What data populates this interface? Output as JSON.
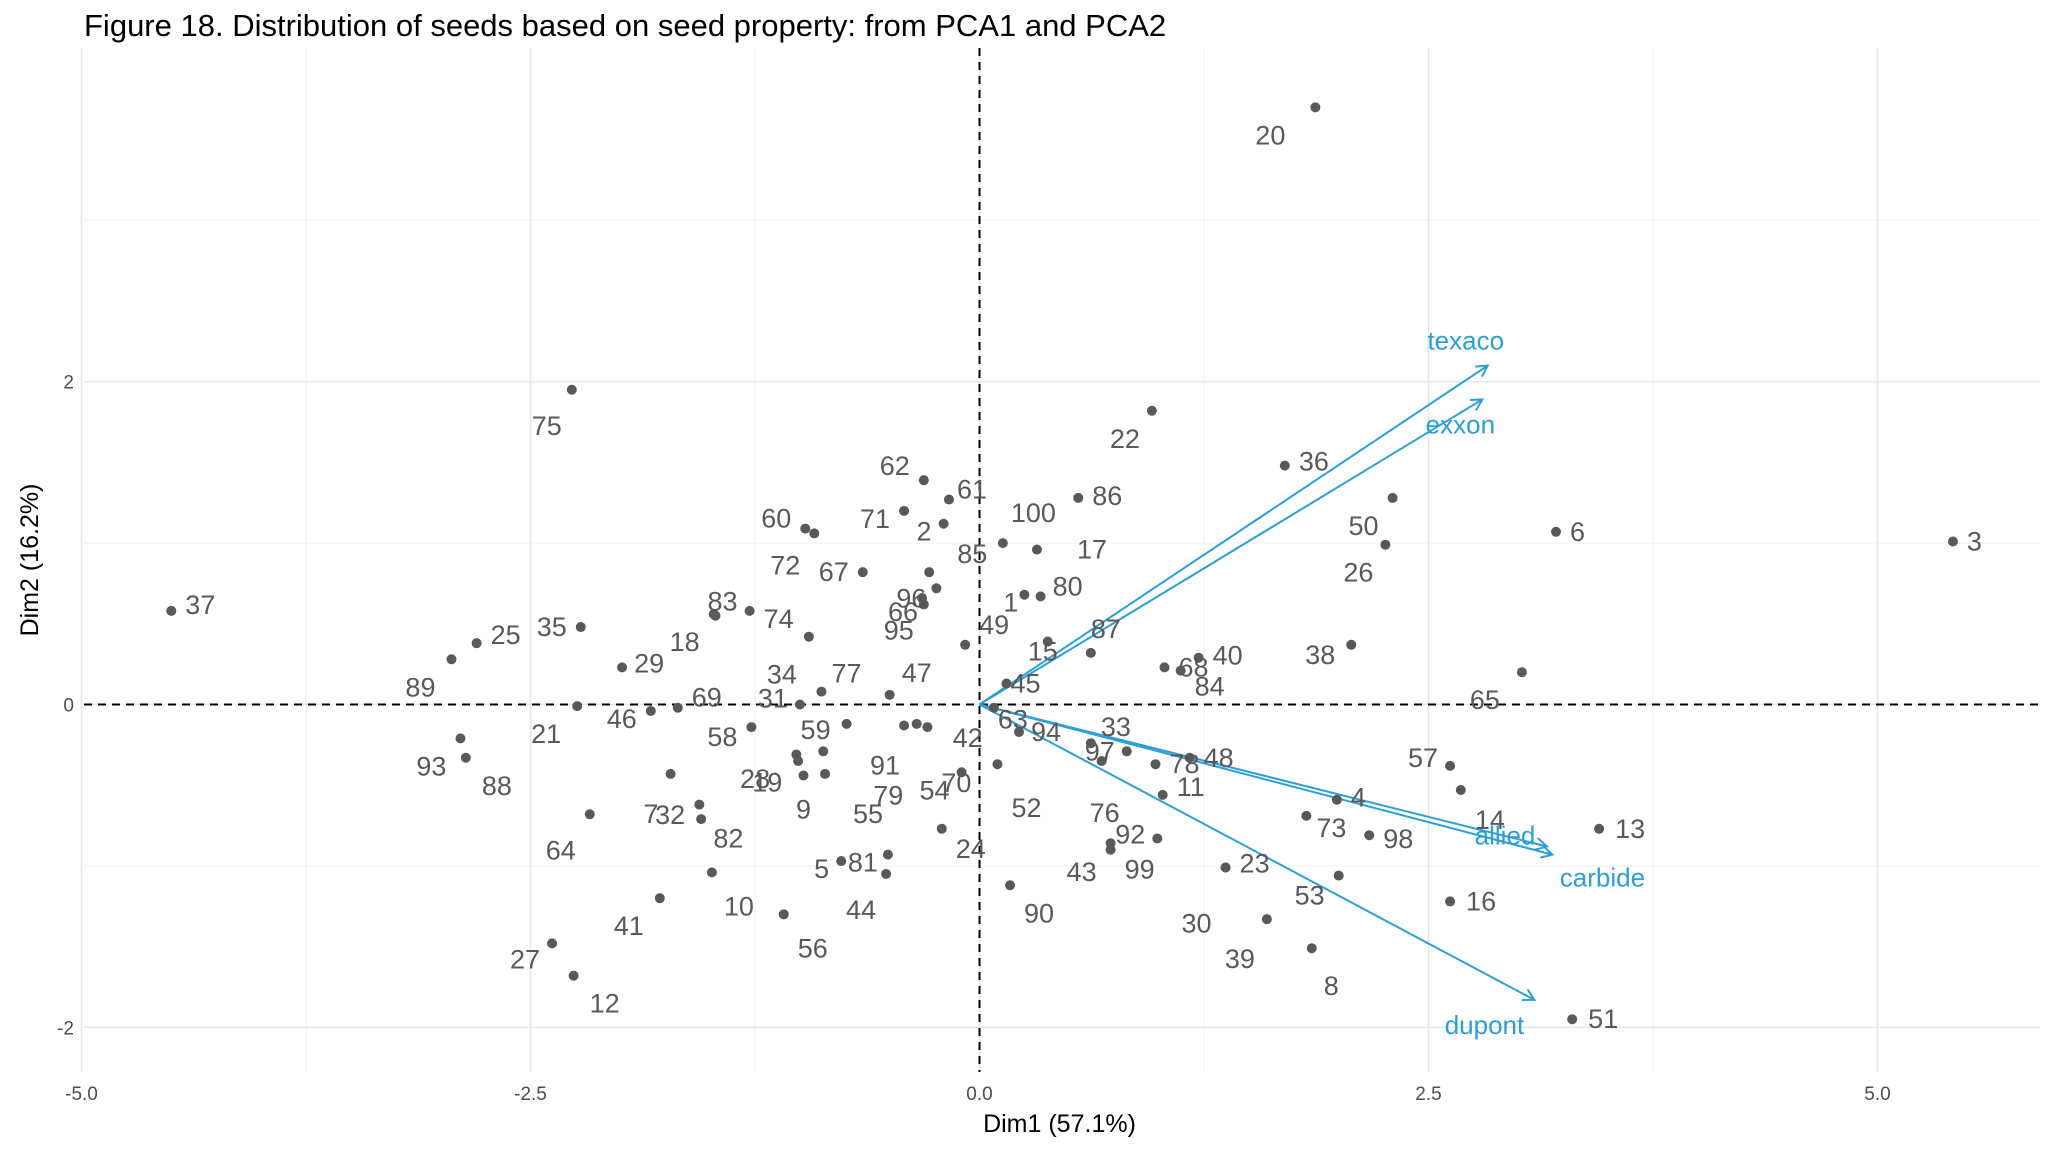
{
  "chart_data": {
    "type": "scatter",
    "title": "Figure 18. Distribution of seeds based on seed property: from PCA1 and PCA2",
    "xlabel": "Dim1 (57.1%)",
    "ylabel": "Dim2 (16.2%)",
    "xlim": [
      -5.0,
      5.85
    ],
    "ylim": [
      -2.22,
      3.9
    ],
    "x_ticks": [
      -5.0,
      -2.5,
      0.0,
      2.5,
      5.0
    ],
    "x_tick_labels": [
      "-5.0",
      "-2.5",
      "0.0",
      "2.5",
      "5.0"
    ],
    "y_ticks": [
      -2,
      0,
      2
    ],
    "y_tick_labels": [
      "-2",
      "0",
      "2"
    ],
    "grid": true,
    "reference_lines": {
      "x": 0,
      "y": 0,
      "style": "dashed"
    },
    "point_color": "#595959",
    "arrow_color": "#2a9fd8",
    "points": [
      {
        "label": "1",
        "x": 0.25,
        "y": 0.68
      },
      {
        "label": "2",
        "x": -0.2,
        "y": 1.12
      },
      {
        "label": "3",
        "x": 5.42,
        "y": 1.01
      },
      {
        "label": "4",
        "x": 1.99,
        "y": -0.59
      },
      {
        "label": "5",
        "x": -0.77,
        "y": -0.97
      },
      {
        "label": "6",
        "x": 3.21,
        "y": 1.07
      },
      {
        "label": "7",
        "x": -1.72,
        "y": -0.43
      },
      {
        "label": "8",
        "x": 1.85,
        "y": -1.51
      },
      {
        "label": "9",
        "x": -0.98,
        "y": -0.44
      },
      {
        "label": "10",
        "x": -1.49,
        "y": -1.04
      },
      {
        "label": "11",
        "x": 1.02,
        "y": -0.56
      },
      {
        "label": "12",
        "x": -2.26,
        "y": -1.68
      },
      {
        "label": "13",
        "x": 3.45,
        "y": -0.77
      },
      {
        "label": "14",
        "x": 2.68,
        "y": -0.53
      },
      {
        "label": "15",
        "x": 0.38,
        "y": 0.39
      },
      {
        "label": "16",
        "x": 2.62,
        "y": -1.22
      },
      {
        "label": "17",
        "x": 0.32,
        "y": 0.96
      },
      {
        "label": "18",
        "x": -1.48,
        "y": 0.56
      },
      {
        "label": "19",
        "x": -1.02,
        "y": -0.31
      },
      {
        "label": "20",
        "x": 1.87,
        "y": 3.7
      },
      {
        "label": "21",
        "x": -2.24,
        "y": -0.01
      },
      {
        "label": "22",
        "x": 0.96,
        "y": 1.82
      },
      {
        "label": "23",
        "x": 1.37,
        "y": -1.01
      },
      {
        "label": "24",
        "x": -0.21,
        "y": -0.77
      },
      {
        "label": "25",
        "x": -2.8,
        "y": 0.38
      },
      {
        "label": "26",
        "x": 2.26,
        "y": 0.99
      },
      {
        "label": "27",
        "x": -2.38,
        "y": -1.48
      },
      {
        "label": "28",
        "x": -1.01,
        "y": -0.35
      },
      {
        "label": "29",
        "x": -1.99,
        "y": 0.23
      },
      {
        "label": "30",
        "x": 1.37,
        "y": -1.01
      },
      {
        "label": "31",
        "x": -1.0,
        "y": 0.0
      },
      {
        "label": "32",
        "x": -1.55,
        "y": -0.71
      },
      {
        "label": "33",
        "x": 0.62,
        "y": -0.24
      },
      {
        "label": "34",
        "x": -0.95,
        "y": 0.42
      },
      {
        "label": "35",
        "x": -2.22,
        "y": 0.48
      },
      {
        "label": "36",
        "x": 1.7,
        "y": 1.48
      },
      {
        "label": "37",
        "x": -4.5,
        "y": 0.58
      },
      {
        "label": "38",
        "x": 2.07,
        "y": 0.37
      },
      {
        "label": "39",
        "x": 1.6,
        "y": -1.33
      },
      {
        "label": "40",
        "x": 1.22,
        "y": 0.29
      },
      {
        "label": "41",
        "x": -1.78,
        "y": -1.2
      },
      {
        "label": "42",
        "x": -0.35,
        "y": -0.12
      },
      {
        "label": "43",
        "x": 0.73,
        "y": -0.9
      },
      {
        "label": "44",
        "x": -0.52,
        "y": -1.05
      },
      {
        "label": "45",
        "x": 0.15,
        "y": 0.13
      },
      {
        "label": "46",
        "x": -1.83,
        "y": -0.04
      },
      {
        "label": "47",
        "x": -0.5,
        "y": 0.06
      },
      {
        "label": "48",
        "x": 1.17,
        "y": -0.33
      },
      {
        "label": "49",
        "x": -0.08,
        "y": 0.37
      },
      {
        "label": "50",
        "x": 2.3,
        "y": 1.28
      },
      {
        "label": "51",
        "x": 3.3,
        "y": -1.95
      },
      {
        "label": "52",
        "x": 0.1,
        "y": -0.37
      },
      {
        "label": "53",
        "x": 2.0,
        "y": -1.06
      },
      {
        "label": "54",
        "x": -0.1,
        "y": -0.42
      },
      {
        "label": "55",
        "x": -0.86,
        "y": -0.43
      },
      {
        "label": "56",
        "x": -1.09,
        "y": -1.3
      },
      {
        "label": "57",
        "x": 2.62,
        "y": -0.38
      },
      {
        "label": "58",
        "x": -1.27,
        "y": -0.14
      },
      {
        "label": "59",
        "x": -0.74,
        "y": -0.12
      },
      {
        "label": "60",
        "x": -0.97,
        "y": 1.09
      },
      {
        "label": "61",
        "x": -0.17,
        "y": 1.27
      },
      {
        "label": "62",
        "x": -0.31,
        "y": 1.39
      },
      {
        "label": "63",
        "x": 0.08,
        "y": -0.02
      },
      {
        "label": "64",
        "x": -2.17,
        "y": -0.68
      },
      {
        "label": "65",
        "x": 3.02,
        "y": 0.2
      },
      {
        "label": "66",
        "x": -0.32,
        "y": 0.66
      },
      {
        "label": "67",
        "x": -0.65,
        "y": 0.82
      },
      {
        "label": "68",
        "x": 1.03,
        "y": 0.23
      },
      {
        "label": "69",
        "x": -1.68,
        "y": -0.02
      },
      {
        "label": "70",
        "x": -0.29,
        "y": -0.14
      },
      {
        "label": "71",
        "x": -0.42,
        "y": 1.2
      },
      {
        "label": "72",
        "x": -0.92,
        "y": 1.06
      },
      {
        "label": "73",
        "x": 1.82,
        "y": -0.69
      },
      {
        "label": "74",
        "x": -1.28,
        "y": 0.58
      },
      {
        "label": "75",
        "x": -2.27,
        "y": 1.95
      },
      {
        "label": "76",
        "x": 0.68,
        "y": -0.35
      },
      {
        "label": "77",
        "x": -0.88,
        "y": 0.08
      },
      {
        "label": "78",
        "x": 0.98,
        "y": -0.37
      },
      {
        "label": "79",
        "x": -0.87,
        "y": -0.29
      },
      {
        "label": "80",
        "x": 0.34,
        "y": 0.67
      },
      {
        "label": "81",
        "x": -0.51,
        "y": -0.93
      },
      {
        "label": "82",
        "x": -1.56,
        "y": -0.62
      },
      {
        "label": "83",
        "x": -1.47,
        "y": 0.55
      },
      {
        "label": "84",
        "x": 1.12,
        "y": 0.21
      },
      {
        "label": "85",
        "x": -0.28,
        "y": 0.82
      },
      {
        "label": "86",
        "x": 0.55,
        "y": 1.28
      },
      {
        "label": "87",
        "x": 0.62,
        "y": 0.32
      },
      {
        "label": "88",
        "x": -2.86,
        "y": -0.33
      },
      {
        "label": "89",
        "x": -2.94,
        "y": 0.28
      },
      {
        "label": "90",
        "x": 0.17,
        "y": -1.12
      },
      {
        "label": "91",
        "x": -0.42,
        "y": -0.13
      },
      {
        "label": "92",
        "x": 0.99,
        "y": -0.83
      },
      {
        "label": "93",
        "x": -2.89,
        "y": -0.21
      },
      {
        "label": "94",
        "x": 0.22,
        "y": -0.17
      },
      {
        "label": "95",
        "x": -0.31,
        "y": 0.62
      },
      {
        "label": "96",
        "x": -0.24,
        "y": 0.72
      },
      {
        "label": "97",
        "x": 0.82,
        "y": -0.29
      },
      {
        "label": "98",
        "x": 2.17,
        "y": -0.81
      },
      {
        "label": "99",
        "x": 0.73,
        "y": -0.86
      },
      {
        "label": "100",
        "x": 0.13,
        "y": 1.0
      }
    ],
    "variables": [
      {
        "name": "texaco",
        "x": 2.83,
        "y": 2.1
      },
      {
        "name": "exxon",
        "x": 2.8,
        "y": 1.89
      },
      {
        "name": "allied",
        "x": 3.16,
        "y": -0.88
      },
      {
        "name": "carbide",
        "x": 3.19,
        "y": -0.93
      },
      {
        "name": "dupont",
        "x": 3.09,
        "y": -1.83
      }
    ]
  }
}
